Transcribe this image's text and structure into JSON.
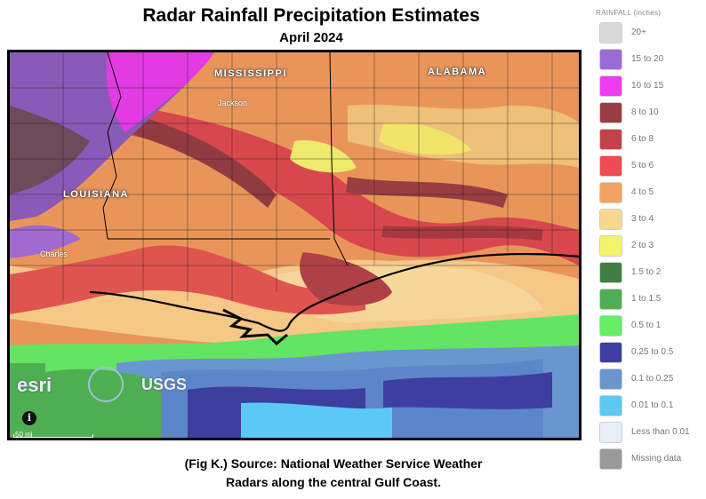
{
  "title": "Radar Rainfall Precipitation Estimates",
  "subtitle": "April 2024",
  "caption_line1": "(Fig K.) Source: National Weather Service Weather",
  "caption_line2": "Radars along the central Gulf Coast.",
  "map": {
    "state_labels": [
      "MISSISSIPPI",
      "ALABAMA",
      "LOUISIANA"
    ],
    "city_labels": [
      "Jackson",
      "Charles"
    ],
    "scale_text": "50 mi",
    "info_symbol": "i",
    "logos": [
      "esri",
      "USGS"
    ]
  },
  "legend": {
    "title": "RAINFALL (inches)",
    "items": [
      {
        "label": "20+",
        "color": "#d9d9d9"
      },
      {
        "label": "15 to 20",
        "color": "#9b6bd8"
      },
      {
        "label": "10 to 15",
        "color": "#f03cf0"
      },
      {
        "label": "8 to 10",
        "color": "#9a3d42"
      },
      {
        "label": "6 to 8",
        "color": "#c3424a"
      },
      {
        "label": "5 to 6",
        "color": "#ee4b52"
      },
      {
        "label": "4 to 5",
        "color": "#f2a362"
      },
      {
        "label": "3 to 4",
        "color": "#f7d88c"
      },
      {
        "label": "2 to 3",
        "color": "#f4f46a"
      },
      {
        "label": "1.5 to 2",
        "color": "#3f7d45"
      },
      {
        "label": "1 to 1.5",
        "color": "#4fae52"
      },
      {
        "label": "0.5 to 1",
        "color": "#66ee66"
      },
      {
        "label": "0.25 to 0.5",
        "color": "#3e3ea0"
      },
      {
        "label": "0.1 to 0.25",
        "color": "#6a96d0"
      },
      {
        "label": "0.01 to 0.1",
        "color": "#5cc9f5"
      },
      {
        "label": "Less than 0.01",
        "color": "#e8eef6"
      },
      {
        "label": "Missing data",
        "color": "#999999"
      }
    ]
  }
}
